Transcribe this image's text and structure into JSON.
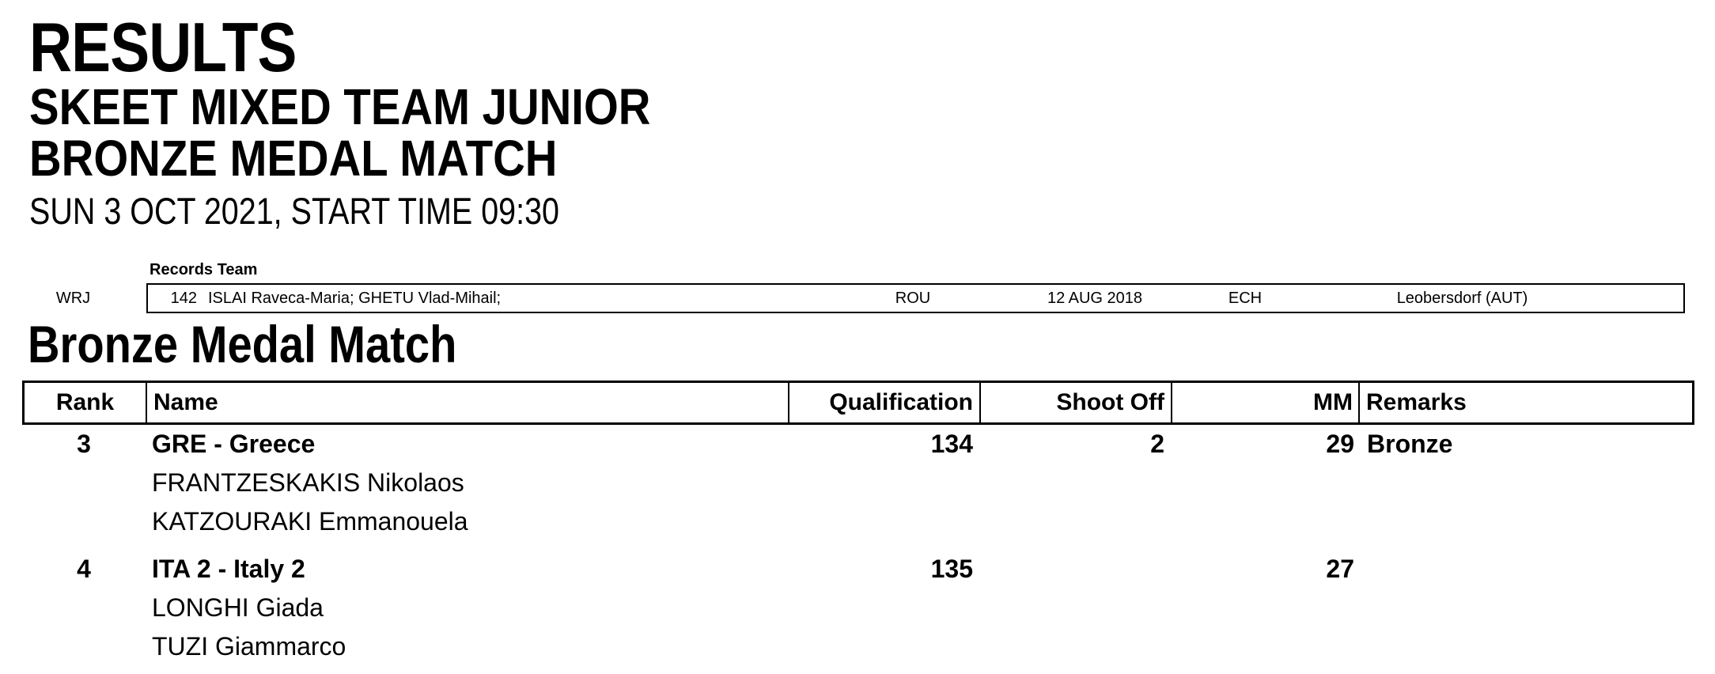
{
  "header": {
    "title": "RESULTS",
    "event": "SKEET MIXED TEAM JUNIOR",
    "match": "BRONZE MEDAL MATCH",
    "datetime": "SUN 3 OCT 2021, START TIME 09:30"
  },
  "records": {
    "label": "Records Team",
    "rows": [
      {
        "type": "WRJ",
        "score": "142",
        "names": "ISLAI Raveca-Maria; GHETU Vlad-Mihail;",
        "nation": "ROU",
        "date": "12 AUG 2018",
        "event": "ECH",
        "place": "Leobersdorf (AUT)"
      }
    ]
  },
  "section": {
    "heading": "Bronze Medal Match"
  },
  "table": {
    "headers": {
      "rank": "Rank",
      "name": "Name",
      "qualification": "Qualification",
      "shoot_off": "Shoot Off",
      "mm": "MM",
      "remarks": "Remarks"
    },
    "rows": [
      {
        "rank": "3",
        "team": "GRE - Greece",
        "qualification": "134",
        "shoot_off": "2",
        "mm": "29",
        "remarks": "Bronze",
        "members": [
          "FRANTZESKAKIS Nikolaos",
          "KATZOURAKI Emmanouela"
        ]
      },
      {
        "rank": "4",
        "team": "ITA 2 - Italy 2",
        "qualification": "135",
        "shoot_off": "",
        "mm": "27",
        "remarks": "",
        "members": [
          "LONGHI Giada",
          "TUZI Giammarco"
        ]
      }
    ]
  },
  "colors": {
    "text": "#000000",
    "background": "#ffffff",
    "border": "#000000"
  }
}
